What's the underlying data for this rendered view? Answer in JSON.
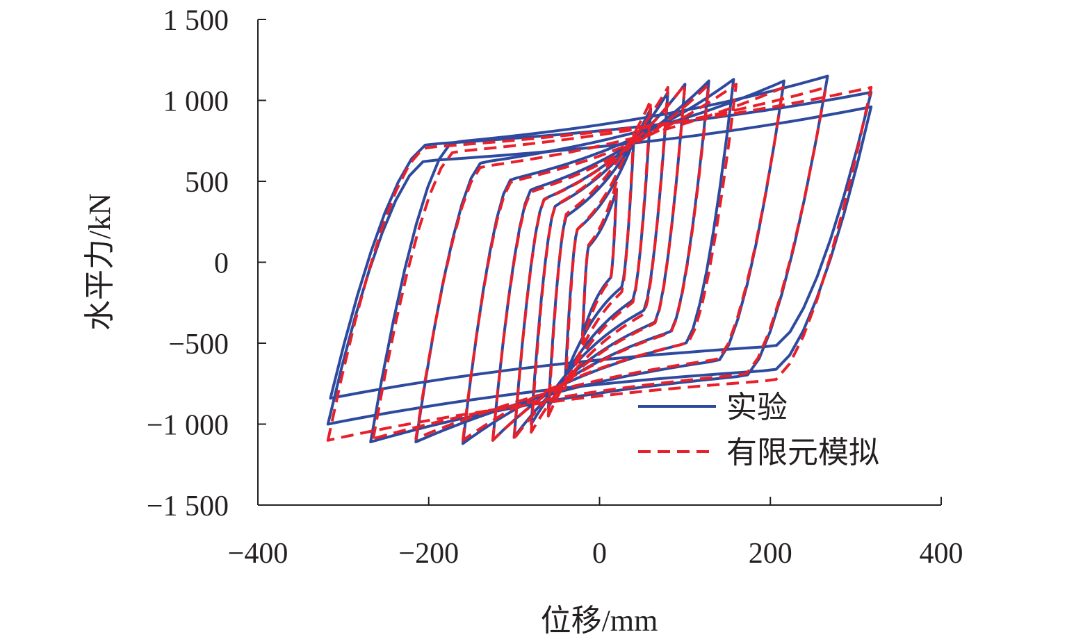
{
  "chart_data": {
    "type": "line",
    "title": "",
    "xlabel": "位移/mm",
    "ylabel": "水平力/kN",
    "xlim": [
      -400,
      400
    ],
    "ylim": [
      -1500,
      1500
    ],
    "xticks": [
      -400,
      -200,
      0,
      200,
      400
    ],
    "xtick_labels": [
      "−400",
      "−200",
      "0",
      "200",
      "400"
    ],
    "yticks": [
      1500,
      1000,
      500,
      0,
      -500,
      -1000,
      -1500
    ],
    "ytick_labels": [
      "1 500",
      "1 000",
      "500",
      "0",
      "−500",
      "−1 000",
      "−1 500"
    ],
    "grid": false,
    "legend_position": "bottom-right",
    "series": [
      {
        "name": "实验",
        "color": "#2e4a9e",
        "style": "solid",
        "cycles": [
          {
            "amp_pos": 20,
            "amp_neg": -20,
            "f_pos": 450,
            "f_neg": -450
          },
          {
            "amp_pos": 40,
            "amp_neg": -40,
            "f_pos": 750,
            "f_neg": -700
          },
          {
            "amp_pos": 60,
            "amp_neg": -60,
            "f_pos": 950,
            "f_neg": -900
          },
          {
            "amp_pos": 80,
            "amp_neg": -80,
            "f_pos": 1050,
            "f_neg": -1000
          },
          {
            "amp_pos": 100,
            "amp_neg": -100,
            "f_pos": 1100,
            "f_neg": -1080
          },
          {
            "amp_pos": 128,
            "amp_neg": -125,
            "f_pos": 1120,
            "f_neg": -1100
          },
          {
            "amp_pos": 157,
            "amp_neg": -160,
            "f_pos": 1130,
            "f_neg": -1120
          },
          {
            "amp_pos": 216,
            "amp_neg": -215,
            "f_pos": 1120,
            "f_neg": -1110
          },
          {
            "amp_pos": 267,
            "amp_neg": -268,
            "f_pos": 1150,
            "f_neg": -1110
          },
          {
            "amp_pos": 318,
            "amp_neg": -318,
            "f_pos": 960,
            "f_neg": -1000
          },
          {
            "amp_pos": 318,
            "amp_neg": -315,
            "f_pos": 1050,
            "f_neg": -840
          }
        ]
      },
      {
        "name": "有限元模拟",
        "color": "#e8202a",
        "style": "dashed",
        "cycles": [
          {
            "amp_pos": 20,
            "amp_neg": -20,
            "f_pos": 500,
            "f_neg": -500
          },
          {
            "amp_pos": 40,
            "amp_neg": -40,
            "f_pos": 800,
            "f_neg": -780
          },
          {
            "amp_pos": 60,
            "amp_neg": -60,
            "f_pos": 1000,
            "f_neg": -950
          },
          {
            "amp_pos": 80,
            "amp_neg": -80,
            "f_pos": 1080,
            "f_neg": -1050
          },
          {
            "amp_pos": 100,
            "amp_neg": -100,
            "f_pos": 1100,
            "f_neg": -1090
          },
          {
            "amp_pos": 128,
            "amp_neg": -125,
            "f_pos": 1100,
            "f_neg": -1100
          },
          {
            "amp_pos": 160,
            "amp_neg": -160,
            "f_pos": 1100,
            "f_neg": -1100
          },
          {
            "amp_pos": 215,
            "amp_neg": -215,
            "f_pos": 1080,
            "f_neg": -1090
          },
          {
            "amp_pos": 265,
            "amp_neg": -265,
            "f_pos": 1080,
            "f_neg": -1090
          },
          {
            "amp_pos": 318,
            "amp_neg": -318,
            "f_pos": 1080,
            "f_neg": -1100
          }
        ]
      }
    ]
  }
}
